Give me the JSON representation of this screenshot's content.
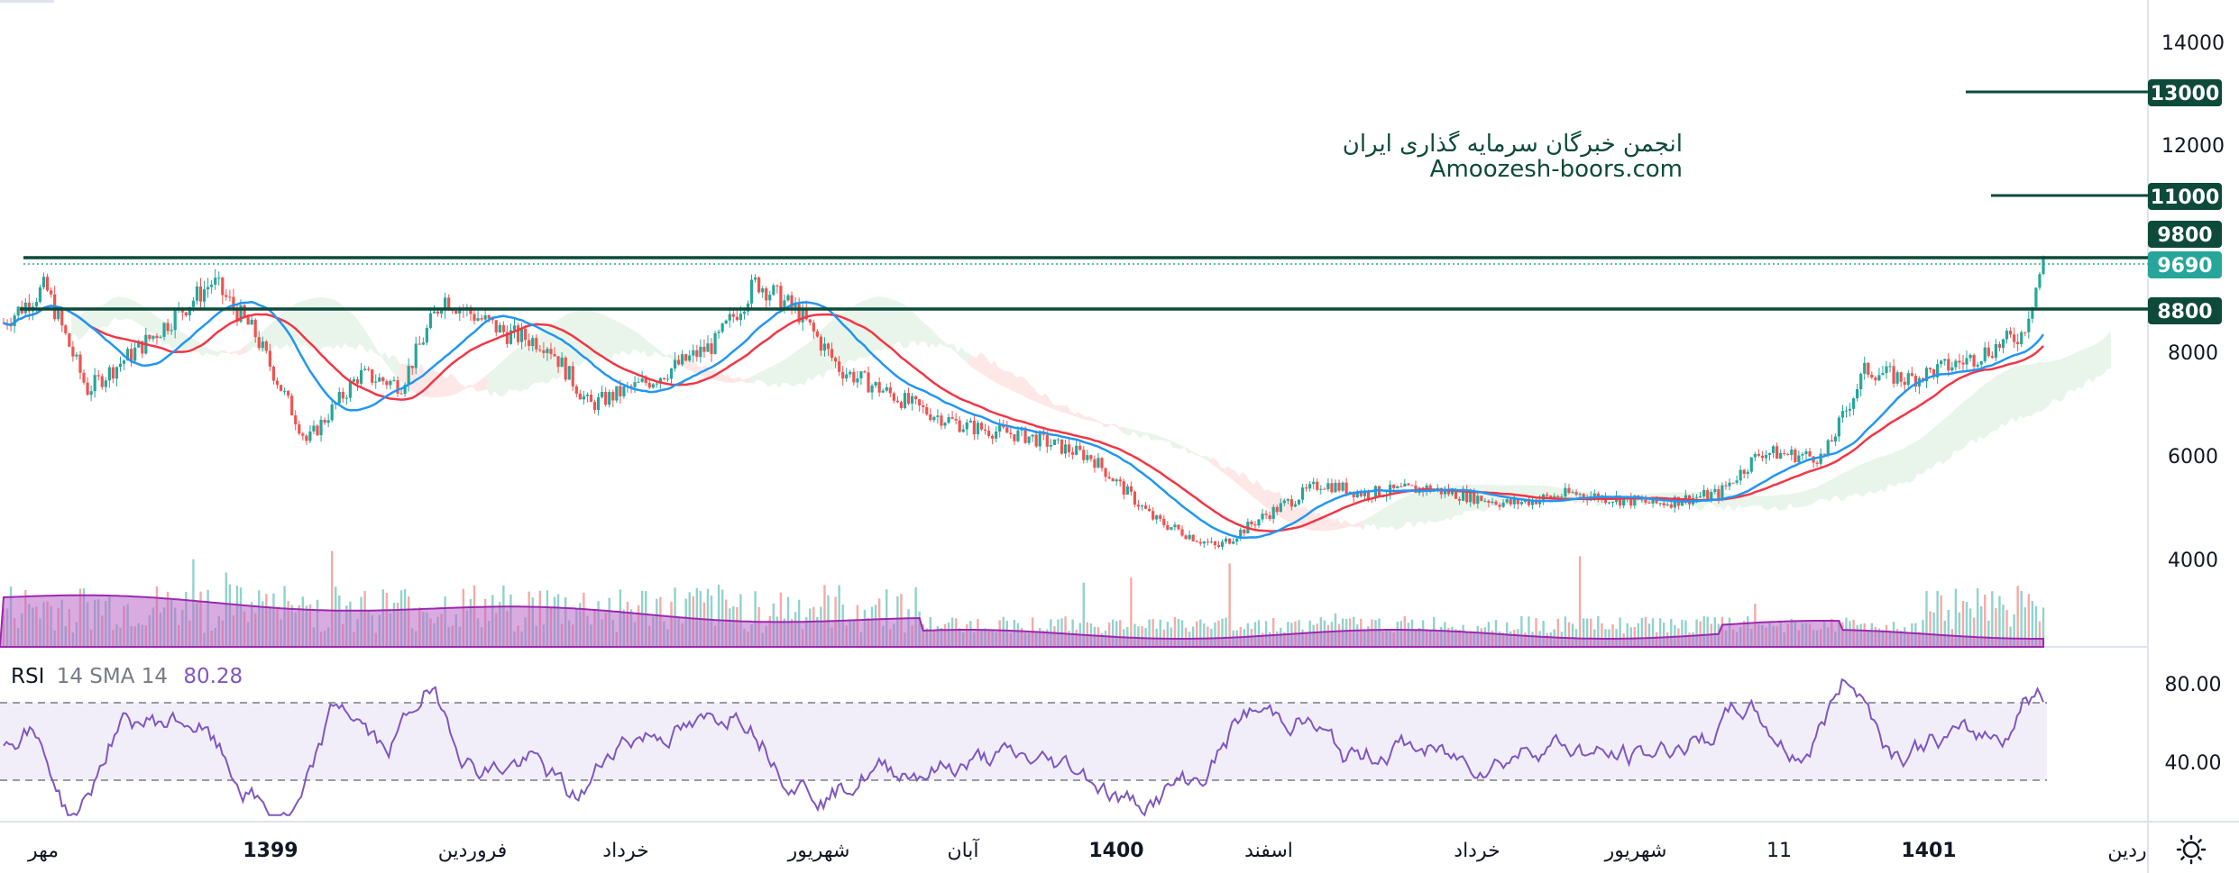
{
  "watermark": {
    "line1": "انجمن خبرگان سرمایه گذاری ایران",
    "line2": "Amoozesh-boors.com"
  },
  "price_axis": {
    "ticks": [
      "14000",
      "12000",
      "8000",
      "6000",
      "4000"
    ]
  },
  "levels": {
    "l13000": "13000",
    "l11000": "11000",
    "l9800": "9800",
    "current": "9690",
    "l8800": "8800"
  },
  "rsi": {
    "name": "RSI",
    "params": "14 SMA 14",
    "value": "80.28",
    "ticks": [
      "80.00",
      "40.00"
    ]
  },
  "time_axis": {
    "labels": [
      "مهر",
      "1399",
      "فروردین",
      "خرداد",
      "شهریور",
      "آبان",
      "1400",
      "اسفند",
      "خرداد",
      "شهریور",
      "11",
      "1401",
      "ردین"
    ],
    "bold": [
      false,
      true,
      false,
      false,
      false,
      false,
      true,
      false,
      false,
      false,
      false,
      true,
      false
    ]
  },
  "colors": {
    "up": "#26a69a",
    "down": "#ef5350",
    "level": "#0e4a3a",
    "current": "#26a69a",
    "ma_red": "#f23645",
    "ma_blue": "#2196f3",
    "rsi_line": "#7e57c2",
    "volume": "#ba68c8"
  },
  "chart_data": {
    "type": "candlestick",
    "symbol_note": "",
    "y_axis": {
      "min": 2400,
      "max": 14500,
      "ticks": [
        14000,
        12000,
        8000,
        6000,
        4000
      ]
    },
    "horizontal_levels": [
      13000,
      11000,
      9800,
      8800
    ],
    "last_price": 9690,
    "close_path": [
      {
        "t": 0.0,
        "v": 8500
      },
      {
        "t": 0.02,
        "v": 9200
      },
      {
        "t": 0.04,
        "v": 7200
      },
      {
        "t": 0.07,
        "v": 8200
      },
      {
        "t": 0.1,
        "v": 9300
      },
      {
        "t": 0.12,
        "v": 8300
      },
      {
        "t": 0.145,
        "v": 6200
      },
      {
        "t": 0.17,
        "v": 7500
      },
      {
        "t": 0.19,
        "v": 7300
      },
      {
        "t": 0.21,
        "v": 9000
      },
      {
        "t": 0.24,
        "v": 8300
      },
      {
        "t": 0.26,
        "v": 8100
      },
      {
        "t": 0.28,
        "v": 6900
      },
      {
        "t": 0.31,
        "v": 7400
      },
      {
        "t": 0.34,
        "v": 8100
      },
      {
        "t": 0.36,
        "v": 9300
      },
      {
        "t": 0.38,
        "v": 8700
      },
      {
        "t": 0.4,
        "v": 7600
      },
      {
        "t": 0.44,
        "v": 6800
      },
      {
        "t": 0.46,
        "v": 6500
      },
      {
        "t": 0.49,
        "v": 6300
      },
      {
        "t": 0.52,
        "v": 5900
      },
      {
        "t": 0.55,
        "v": 4700
      },
      {
        "t": 0.58,
        "v": 4150
      },
      {
        "t": 0.6,
        "v": 4700
      },
      {
        "t": 0.63,
        "v": 5400
      },
      {
        "t": 0.65,
        "v": 5200
      },
      {
        "t": 0.68,
        "v": 5300
      },
      {
        "t": 0.72,
        "v": 5000
      },
      {
        "t": 0.75,
        "v": 5200
      },
      {
        "t": 0.79,
        "v": 5000
      },
      {
        "t": 0.82,
        "v": 5200
      },
      {
        "t": 0.84,
        "v": 6000
      },
      {
        "t": 0.87,
        "v": 5900
      },
      {
        "t": 0.89,
        "v": 7600
      },
      {
        "t": 0.91,
        "v": 7400
      },
      {
        "t": 0.94,
        "v": 7800
      },
      {
        "t": 0.965,
        "v": 8300
      },
      {
        "t": 0.975,
        "v": 9690
      }
    ]
  }
}
